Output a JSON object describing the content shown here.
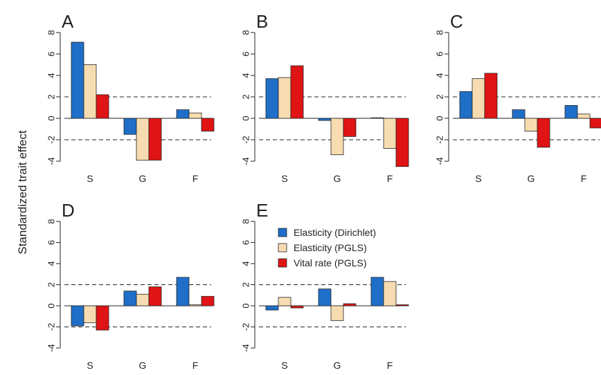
{
  "ylabel": "Standardized trait effect",
  "legend": [
    {
      "label": "Elasticity (Dirichlet)",
      "color": "#1f6fc9"
    },
    {
      "label": "Elasticity (PGLS)",
      "color": "#f7dcb1"
    },
    {
      "label": "Vital rate (PGLS)",
      "color": "#e01414"
    }
  ],
  "chart_data": [
    {
      "panel": "A",
      "type": "bar",
      "categories": [
        "S",
        "G",
        "F"
      ],
      "series": [
        {
          "name": "Elasticity (Dirichlet)",
          "values": [
            7.1,
            -1.5,
            0.8
          ]
        },
        {
          "name": "Elasticity (PGLS)",
          "values": [
            5.0,
            -3.9,
            0.5
          ]
        },
        {
          "name": "Vital rate (PGLS)",
          "values": [
            2.2,
            -3.9,
            -1.2
          ]
        }
      ],
      "yticks": [
        -4,
        -2,
        0,
        2,
        4,
        6,
        8
      ],
      "ylim": [
        -4.6,
        8.6
      ],
      "reference_lines": [
        -2,
        0,
        2
      ]
    },
    {
      "panel": "B",
      "type": "bar",
      "categories": [
        "S",
        "G",
        "F"
      ],
      "series": [
        {
          "name": "Elasticity (Dirichlet)",
          "values": [
            3.7,
            -0.2,
            0.05
          ]
        },
        {
          "name": "Elasticity (PGLS)",
          "values": [
            3.8,
            -3.4,
            -2.8
          ]
        },
        {
          "name": "Vital rate (PGLS)",
          "values": [
            4.9,
            -1.7,
            -4.5
          ]
        }
      ],
      "yticks": [
        -4,
        -2,
        0,
        2,
        4,
        6,
        8
      ],
      "ylim": [
        -4.6,
        8.6
      ],
      "reference_lines": [
        -2,
        0,
        2
      ]
    },
    {
      "panel": "C",
      "type": "bar",
      "categories": [
        "S",
        "G",
        "F"
      ],
      "series": [
        {
          "name": "Elasticity (Dirichlet)",
          "values": [
            2.5,
            0.8,
            1.2
          ]
        },
        {
          "name": "Elasticity (PGLS)",
          "values": [
            3.7,
            -1.2,
            0.4
          ]
        },
        {
          "name": "Vital rate (PGLS)",
          "values": [
            4.2,
            -2.7,
            -0.9
          ]
        }
      ],
      "yticks": [
        -4,
        -2,
        0,
        2,
        4,
        6,
        8
      ],
      "ylim": [
        -4.6,
        8.6
      ],
      "reference_lines": [
        -2,
        0,
        2
      ]
    },
    {
      "panel": "D",
      "type": "bar",
      "categories": [
        "S",
        "G",
        "F"
      ],
      "series": [
        {
          "name": "Elasticity (Dirichlet)",
          "values": [
            -1.9,
            1.4,
            2.7
          ]
        },
        {
          "name": "Elasticity (PGLS)",
          "values": [
            -1.6,
            1.1,
            0.1
          ]
        },
        {
          "name": "Vital rate (PGLS)",
          "values": [
            -2.3,
            1.8,
            0.9
          ]
        }
      ],
      "yticks": [
        -4,
        -2,
        0,
        2,
        4,
        6,
        8
      ],
      "ylim": [
        -4.6,
        8.6
      ],
      "reference_lines": [
        -2,
        0,
        2
      ]
    },
    {
      "panel": "E",
      "type": "bar",
      "categories": [
        "S",
        "G",
        "F"
      ],
      "series": [
        {
          "name": "Elasticity (Dirichlet)",
          "values": [
            -0.4,
            1.6,
            2.7
          ]
        },
        {
          "name": "Elasticity (PGLS)",
          "values": [
            0.8,
            -1.4,
            2.3
          ]
        },
        {
          "name": "Vital rate (PGLS)",
          "values": [
            -0.2,
            0.2,
            0.1
          ]
        }
      ],
      "yticks": [
        -4,
        -2,
        0,
        2,
        4,
        6,
        8
      ],
      "ylim": [
        -4.6,
        8.6
      ],
      "reference_lines": [
        -2,
        0,
        2
      ]
    }
  ]
}
